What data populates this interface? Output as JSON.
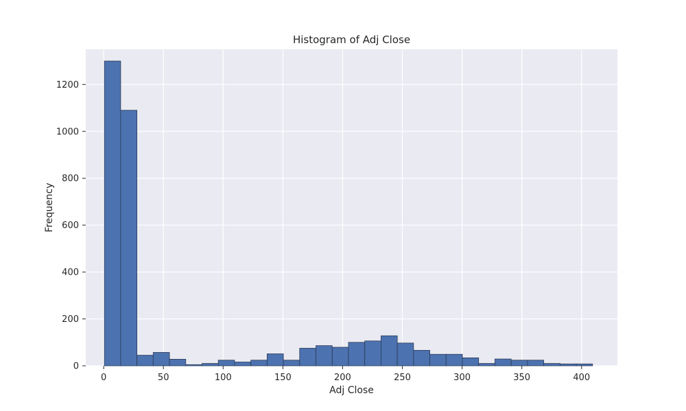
{
  "colors": {
    "plot_background": "#eaeaf2",
    "grid": "#ffffff",
    "bar_fill": "#4c72b0",
    "bar_edge": "#2b3a55",
    "text": "#262626"
  },
  "chart_data": {
    "type": "bar",
    "title": "Histogram of Adj Close",
    "xlabel": "Adj Close",
    "ylabel": "Frequency",
    "xlim": [
      -15,
      430
    ],
    "ylim": [
      0,
      1350
    ],
    "grid": true,
    "x_ticks": [
      0,
      50,
      100,
      150,
      200,
      250,
      300,
      350,
      400
    ],
    "x_tick_labels": [
      "0",
      "50",
      "100",
      "150",
      "200",
      "250",
      "300",
      "350",
      "400"
    ],
    "y_ticks": [
      0,
      200,
      400,
      600,
      800,
      1000,
      1200
    ],
    "y_tick_labels": [
      "0",
      "200",
      "400",
      "600",
      "800",
      "1000",
      "1200"
    ],
    "bin_start": 0.6,
    "bin_width": 13.62,
    "values": [
      1300,
      1090,
      45,
      57,
      28,
      5,
      10,
      24,
      16,
      24,
      51,
      24,
      75,
      86,
      79,
      100,
      106,
      128,
      97,
      66,
      49,
      49,
      34,
      10,
      29,
      24,
      24,
      10,
      8,
      8
    ]
  }
}
